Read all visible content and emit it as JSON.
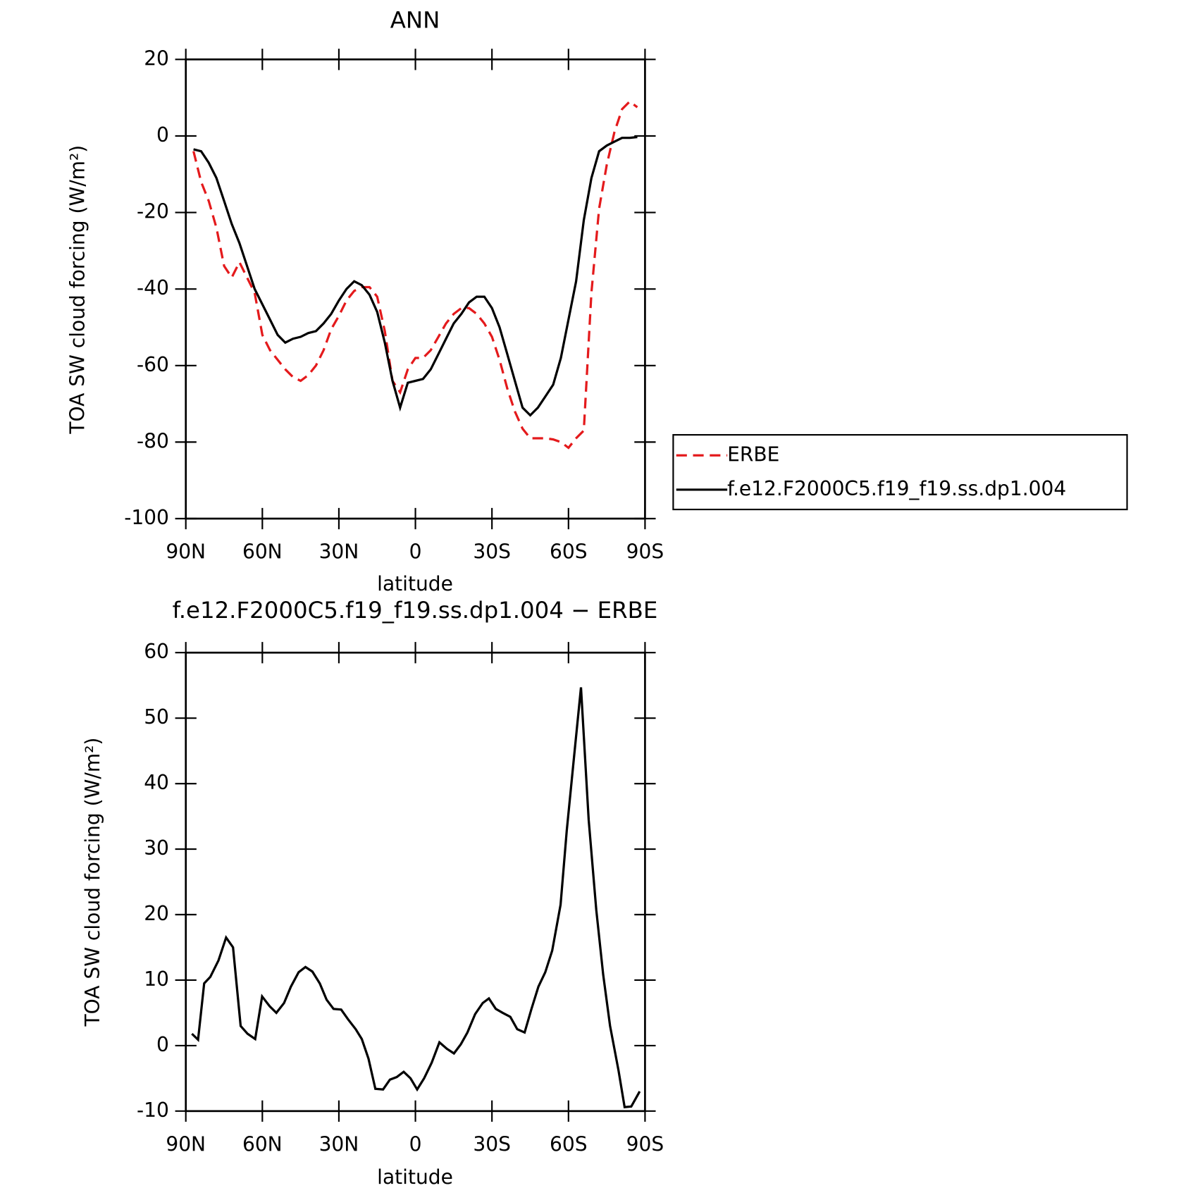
{
  "chart_data": [
    {
      "type": "line",
      "title": "ANN",
      "xlabel": "latitude",
      "ylabel": "TOA SW cloud forcing (W/m²)",
      "x": [
        87,
        84,
        81,
        78,
        75,
        72,
        69,
        66,
        63,
        60,
        57,
        54,
        51,
        48,
        45,
        42,
        39,
        36,
        33,
        30,
        27,
        24,
        21,
        18,
        15,
        12,
        9,
        6,
        3,
        0,
        -3,
        -6,
        -9,
        -12,
        -15,
        -18,
        -21,
        -24,
        -27,
        -30,
        -33,
        -36,
        -39,
        -42,
        -45,
        -48,
        -51,
        -54,
        -57,
        -60,
        -63,
        -66,
        -69,
        -72,
        -75,
        -78,
        -81,
        -84,
        -87
      ],
      "series": [
        {
          "name": "ERBE",
          "color": "#e41a1c",
          "dash": true,
          "values": [
            -4,
            -12,
            -17,
            -24,
            -34,
            -37,
            -33,
            -37,
            -41,
            -52,
            -56,
            -58.5,
            -61,
            -63,
            -64,
            -62.5,
            -60,
            -56,
            -50.5,
            -47,
            -43,
            -40.5,
            -39.5,
            -39.5,
            -42,
            -51,
            -64,
            -67,
            -61,
            -58,
            -58,
            -56,
            -52.5,
            -49,
            -46.5,
            -45,
            -45,
            -46.5,
            -49,
            -52.5,
            -58.5,
            -66,
            -72,
            -76.5,
            -79,
            -79,
            -79,
            -79.3,
            -80,
            -81.5,
            -79,
            -77,
            -41,
            -19,
            -7.5,
            1,
            7,
            9,
            7.5
          ]
        },
        {
          "name": "f.e12.F2000C5.f19_f19.ss.dp1.004",
          "color": "#000000",
          "dash": false,
          "values": [
            -3.5,
            -4,
            -7,
            -11,
            -17,
            -23,
            -28,
            -34,
            -40,
            -44,
            -48,
            -52,
            -54,
            -53,
            -52.5,
            -51.5,
            -51,
            -49,
            -46.5,
            -43,
            -40,
            -38,
            -39,
            -41.5,
            -46,
            -54,
            -64,
            -71,
            -64.5,
            -64,
            -63.5,
            -61,
            -57,
            -53,
            -49,
            -46.5,
            -43.5,
            -42,
            -42,
            -45,
            -50,
            -57,
            -64,
            -71,
            -73,
            -71,
            -68,
            -65,
            -58,
            -48,
            -38,
            -22,
            -11,
            -4,
            -2.5,
            -1.5,
            -0.5,
            -0.5,
            -0.3
          ]
        }
      ],
      "xlim": [
        90,
        -90
      ],
      "xticks": [
        {
          "value": 90,
          "label": "90N"
        },
        {
          "value": 60,
          "label": "60N"
        },
        {
          "value": 30,
          "label": "30N"
        },
        0,
        {
          "value": -30,
          "label": "30S"
        },
        {
          "value": -60,
          "label": "60S"
        },
        {
          "value": -90,
          "label": "90S"
        }
      ],
      "ylim": [
        -100,
        20
      ],
      "yticks": [
        -100,
        -80,
        -60,
        -40,
        -20,
        0,
        20
      ],
      "legend": "right"
    },
    {
      "type": "line",
      "title": "f.e12.F2000C5.f19_f19.ss.dp1.004 − ERBE",
      "xlabel": "latitude",
      "ylabel": "TOA SW cloud forcing (W/m²)",
      "x": [
        87.6,
        85.2,
        82.8,
        80.4,
        77.2,
        74.2,
        71.5,
        68.5,
        65.8,
        62.8,
        60.1,
        57.1,
        54.5,
        51.5,
        48.8,
        45.8,
        43.1,
        40.4,
        37.5,
        34.8,
        32.1,
        29.1,
        26.4,
        23.4,
        21.0,
        18.4,
        15.7,
        12.7,
        10.0,
        7.3,
        4.6,
        1.9,
        -0.7,
        -3.4,
        -6.4,
        -9.4,
        -12.4,
        -15.1,
        -17.8,
        -20.4,
        -23.4,
        -26.4,
        -28.8,
        -31.5,
        -34.2,
        -37.2,
        -39.9,
        -42.8,
        -45.5,
        -48.2,
        -50.9,
        -53.6,
        -56.9,
        -59.3,
        -62.0,
        -64.9,
        -67.9,
        -70.9,
        -73.6,
        -76.3,
        -79.6,
        -82.0,
        -84.6,
        -87.9
      ],
      "series": [
        {
          "color": "#000000",
          "dash": false,
          "values": [
            1.8,
            0.9,
            9.5,
            10.5,
            13,
            16.5,
            15,
            3,
            1.8,
            1,
            7.5,
            6,
            5,
            6.5,
            9,
            11.2,
            12,
            11.3,
            9.5,
            7,
            5.6,
            5.5,
            4,
            2.5,
            1,
            -2,
            -6.6,
            -6.7,
            -5.2,
            -4.8,
            -4,
            -5,
            -6.7,
            -5,
            -2.6,
            0.5,
            -0.5,
            -1.2,
            0.2,
            2,
            4.8,
            6.5,
            7.2,
            5.6,
            5,
            4.4,
            2.5,
            2,
            5.6,
            9,
            11.2,
            14.5,
            21.5,
            32.8,
            43.4,
            54.7,
            34.5,
            20.7,
            10.8,
            3,
            -3.8,
            -9.4,
            -9.3,
            -7
          ]
        }
      ],
      "xlim": [
        90,
        -90
      ],
      "xticks": [
        {
          "value": 90,
          "label": "90N"
        },
        {
          "value": 60,
          "label": "60N"
        },
        {
          "value": 30,
          "label": "30N"
        },
        0,
        {
          "value": -30,
          "label": "30S"
        },
        {
          "value": -60,
          "label": "60S"
        },
        {
          "value": -90,
          "label": "90S"
        }
      ],
      "ylim": [
        -10,
        60
      ],
      "yticks": [
        -10,
        0,
        10,
        20,
        30,
        40,
        50,
        60
      ]
    }
  ]
}
